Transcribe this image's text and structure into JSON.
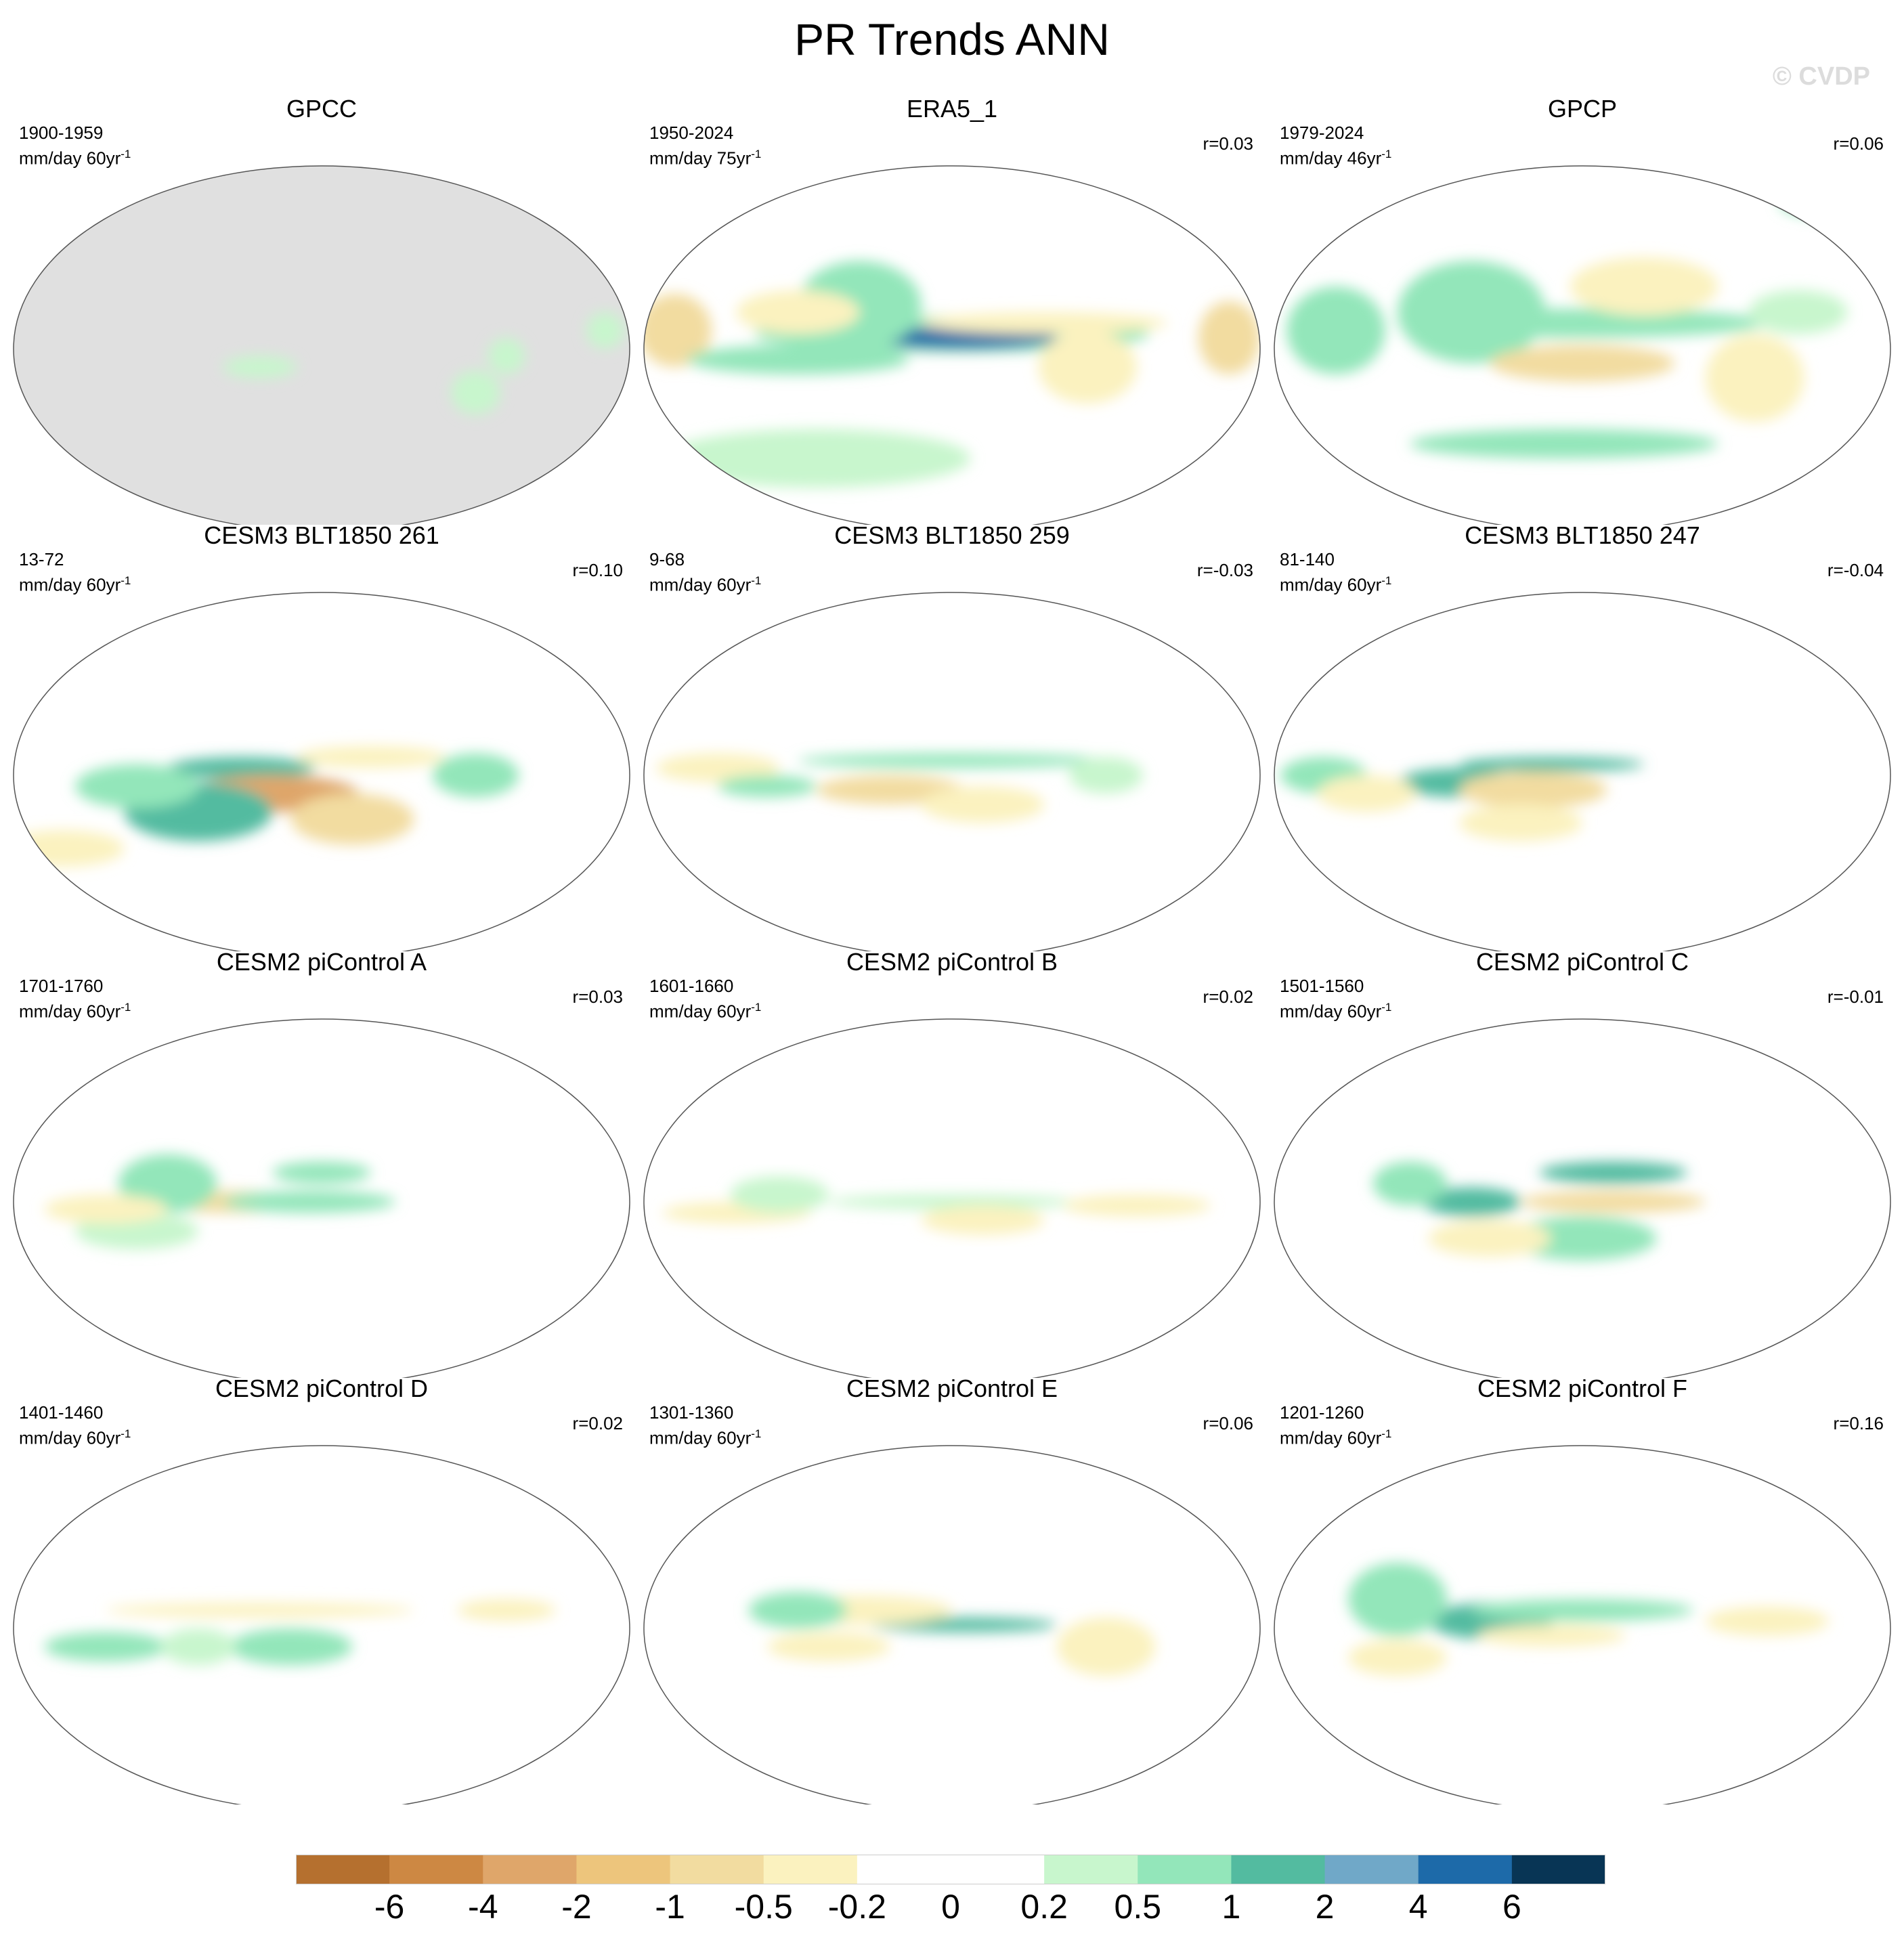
{
  "title": "PR Trends ANN",
  "watermark": "© CVDP",
  "panels": [
    {
      "title": "GPCC",
      "period": "1900-1959",
      "units": "mm/day 60yr",
      "units_exp": "-1",
      "corr": "",
      "missing_data": true,
      "blobs": [
        [
          "pos",
          0.4,
          0.55,
          0.06,
          0.03,
          1
        ],
        [
          "pos",
          0.75,
          0.62,
          0.04,
          0.06,
          1
        ],
        [
          "pos",
          0.96,
          0.45,
          0.03,
          0.05,
          1
        ],
        [
          "pos",
          0.8,
          0.52,
          0.03,
          0.05,
          1
        ]
      ]
    },
    {
      "title": "ERA5_1",
      "period": "1950-2024",
      "units": "mm/day 75yr",
      "units_exp": "-1",
      "corr": "r=0.03",
      "blobs": [
        [
          "pos",
          0.5,
          0.46,
          0.32,
          0.05,
          2
        ],
        [
          "pos",
          0.52,
          0.47,
          0.15,
          0.03,
          4
        ],
        [
          "neg",
          0.05,
          0.45,
          0.06,
          0.1,
          2
        ],
        [
          "neg",
          0.95,
          0.47,
          0.05,
          0.1,
          2
        ],
        [
          "pos",
          0.25,
          0.53,
          0.18,
          0.04,
          2
        ],
        [
          "pos",
          0.35,
          0.38,
          0.1,
          0.12,
          2
        ],
        [
          "pos",
          0.28,
          0.8,
          0.25,
          0.08,
          1
        ],
        [
          "neg",
          0.65,
          0.43,
          0.2,
          0.03,
          1
        ],
        [
          "neg",
          0.72,
          0.55,
          0.08,
          0.1,
          1
        ],
        [
          "neg",
          0.25,
          0.4,
          0.1,
          0.06,
          1
        ]
      ]
    },
    {
      "title": "GPCP",
      "period": "1979-2024",
      "units": "mm/day 46yr",
      "units_exp": "-1",
      "corr": "r=0.06",
      "blobs": [
        [
          "pos",
          0.1,
          0.45,
          0.08,
          0.12,
          2
        ],
        [
          "pos",
          0.32,
          0.4,
          0.12,
          0.14,
          2
        ],
        [
          "pos",
          0.5,
          0.43,
          0.3,
          0.04,
          2
        ],
        [
          "neg",
          0.5,
          0.54,
          0.15,
          0.05,
          2
        ],
        [
          "pos",
          0.47,
          0.76,
          0.25,
          0.04,
          2
        ],
        [
          "neg",
          0.6,
          0.33,
          0.12,
          0.08,
          1
        ],
        [
          "neg",
          0.78,
          0.58,
          0.08,
          0.12,
          1
        ],
        [
          "pos",
          0.85,
          0.4,
          0.08,
          0.06,
          1
        ],
        [
          "pos",
          0.9,
          0.1,
          0.08,
          0.04,
          2
        ]
      ]
    },
    {
      "title": "CESM3 BLT1850 261",
      "period": "13-72",
      "units": "mm/day 60yr",
      "units_exp": "-1",
      "corr": "r=0.10",
      "blobs": [
        [
          "pos",
          0.37,
          0.48,
          0.12,
          0.03,
          3
        ],
        [
          "neg",
          0.42,
          0.55,
          0.14,
          0.05,
          3
        ],
        [
          "pos",
          0.3,
          0.6,
          0.12,
          0.08,
          3
        ],
        [
          "pos",
          0.2,
          0.53,
          0.1,
          0.06,
          2
        ],
        [
          "neg",
          0.58,
          0.45,
          0.12,
          0.03,
          1
        ],
        [
          "neg",
          0.55,
          0.62,
          0.1,
          0.07,
          2
        ],
        [
          "pos",
          0.75,
          0.5,
          0.07,
          0.06,
          2
        ],
        [
          "neg",
          0.08,
          0.7,
          0.1,
          0.05,
          1
        ]
      ]
    },
    {
      "title": "CESM3 BLT1850 259",
      "period": "9-68",
      "units": "mm/day 60yr",
      "units_exp": "-1",
      "corr": "r=-0.03",
      "blobs": [
        [
          "pos",
          0.5,
          0.46,
          0.25,
          0.02,
          2
        ],
        [
          "neg",
          0.4,
          0.54,
          0.12,
          0.04,
          2
        ],
        [
          "neg",
          0.12,
          0.48,
          0.1,
          0.04,
          1
        ],
        [
          "pos",
          0.2,
          0.53,
          0.08,
          0.03,
          2
        ],
        [
          "neg",
          0.55,
          0.58,
          0.1,
          0.05,
          1
        ],
        [
          "pos",
          0.75,
          0.5,
          0.06,
          0.05,
          1
        ]
      ]
    },
    {
      "title": "CESM3 BLT1850 247",
      "period": "81-140",
      "units": "mm/day 60yr",
      "units_exp": "-1",
      "corr": "r=-0.04",
      "blobs": [
        [
          "pos",
          0.45,
          0.47,
          0.15,
          0.02,
          3
        ],
        [
          "pos",
          0.3,
          0.52,
          0.1,
          0.04,
          3
        ],
        [
          "neg",
          0.42,
          0.54,
          0.12,
          0.05,
          2
        ],
        [
          "pos",
          0.08,
          0.5,
          0.07,
          0.05,
          2
        ],
        [
          "neg",
          0.15,
          0.55,
          0.08,
          0.05,
          1
        ],
        [
          "neg",
          0.4,
          0.63,
          0.1,
          0.05,
          1
        ]
      ]
    },
    {
      "title": "CESM2 piControl A",
      "period": "1701-1760",
      "units": "mm/day 60yr",
      "units_exp": "-1",
      "corr": "r=0.03",
      "blobs": [
        [
          "neg",
          0.35,
          0.5,
          0.12,
          0.03,
          2
        ],
        [
          "pos",
          0.48,
          0.5,
          0.14,
          0.03,
          2
        ],
        [
          "pos",
          0.5,
          0.42,
          0.08,
          0.03,
          2
        ],
        [
          "pos",
          0.25,
          0.45,
          0.08,
          0.08,
          2
        ],
        [
          "pos",
          0.2,
          0.58,
          0.1,
          0.05,
          1
        ],
        [
          "neg",
          0.15,
          0.52,
          0.1,
          0.04,
          1
        ]
      ]
    },
    {
      "title": "CESM2 piControl B",
      "period": "1601-1660",
      "units": "mm/day 60yr",
      "units_exp": "-1",
      "corr": "r=0.02",
      "blobs": [
        [
          "pos",
          0.5,
          0.5,
          0.2,
          0.02,
          1
        ],
        [
          "neg",
          0.15,
          0.53,
          0.12,
          0.03,
          1
        ],
        [
          "neg",
          0.8,
          0.51,
          0.12,
          0.03,
          1
        ],
        [
          "pos",
          0.22,
          0.48,
          0.08,
          0.05,
          1
        ],
        [
          "neg",
          0.55,
          0.55,
          0.1,
          0.04,
          1
        ]
      ]
    },
    {
      "title": "CESM2 piControl C",
      "period": "1501-1560",
      "units": "mm/day 60yr",
      "units_exp": "-1",
      "corr": "r=-0.01",
      "blobs": [
        [
          "pos",
          0.55,
          0.42,
          0.12,
          0.03,
          3
        ],
        [
          "pos",
          0.32,
          0.5,
          0.08,
          0.04,
          3
        ],
        [
          "neg",
          0.55,
          0.5,
          0.15,
          0.03,
          2
        ],
        [
          "pos",
          0.5,
          0.6,
          0.12,
          0.06,
          2
        ],
        [
          "neg",
          0.35,
          0.6,
          0.1,
          0.05,
          1
        ],
        [
          "pos",
          0.22,
          0.45,
          0.06,
          0.06,
          2
        ]
      ]
    },
    {
      "title": "CESM2 piControl D",
      "period": "1401-1460",
      "units": "mm/day 60yr",
      "units_exp": "-1",
      "corr": "r=0.02",
      "blobs": [
        [
          "neg",
          0.4,
          0.45,
          0.25,
          0.02,
          1
        ],
        [
          "pos",
          0.15,
          0.55,
          0.1,
          0.04,
          2
        ],
        [
          "pos",
          0.45,
          0.55,
          0.1,
          0.05,
          2
        ],
        [
          "pos",
          0.3,
          0.55,
          0.06,
          0.05,
          1
        ],
        [
          "neg",
          0.8,
          0.45,
          0.08,
          0.03,
          1
        ]
      ]
    },
    {
      "title": "CESM2 piControl E",
      "period": "1301-1360",
      "units": "mm/day 60yr",
      "units_exp": "-1",
      "corr": "r=0.06",
      "blobs": [
        [
          "pos",
          0.52,
          0.49,
          0.15,
          0.02,
          3
        ],
        [
          "neg",
          0.35,
          0.45,
          0.15,
          0.04,
          1
        ],
        [
          "pos",
          0.25,
          0.45,
          0.08,
          0.05,
          2
        ],
        [
          "neg",
          0.3,
          0.55,
          0.1,
          0.04,
          1
        ],
        [
          "neg",
          0.75,
          0.55,
          0.08,
          0.08,
          1
        ]
      ]
    },
    {
      "title": "CESM2 piControl F",
      "period": "1201-1260",
      "units": "mm/day 60yr",
      "units_exp": "-1",
      "corr": "r=0.16",
      "blobs": [
        [
          "pos",
          0.35,
          0.48,
          0.1,
          0.05,
          3
        ],
        [
          "pos",
          0.5,
          0.45,
          0.18,
          0.03,
          2
        ],
        [
          "neg",
          0.45,
          0.52,
          0.12,
          0.03,
          1
        ],
        [
          "pos",
          0.2,
          0.42,
          0.08,
          0.1,
          2
        ],
        [
          "neg",
          0.2,
          0.58,
          0.08,
          0.05,
          1
        ],
        [
          "neg",
          0.8,
          0.48,
          0.1,
          0.04,
          1
        ]
      ]
    }
  ],
  "colorbar": {
    "colors": [
      "#b5702f",
      "#cd8843",
      "#dfa66a",
      "#edc57c",
      "#f2dca0",
      "#fbf2bf",
      "#ffffff",
      "#ffffff",
      "#c8f6cd",
      "#93e6ba",
      "#53bba0",
      "#70a8c8",
      "#1d6aa9",
      "#083555"
    ],
    "labels": [
      "-6",
      "-4",
      "-2",
      "-1",
      "-0.5",
      "-0.2",
      "0",
      "0.2",
      "0.5",
      "1",
      "2",
      "4",
      "6"
    ]
  }
}
